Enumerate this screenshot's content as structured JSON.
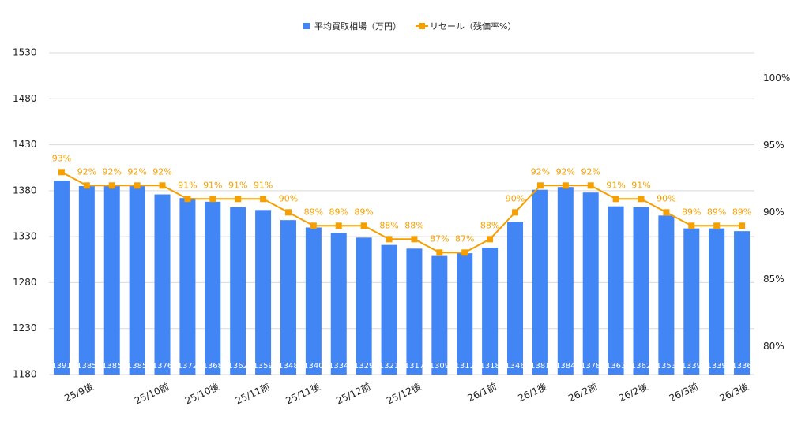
{
  "chart_data": {
    "type": "bar-line",
    "categories": [
      null,
      "25/9後",
      null,
      null,
      "25/10前",
      null,
      "25/10後",
      null,
      "25/11前",
      null,
      "25/11後",
      null,
      "25/12前",
      null,
      "25/12後",
      null,
      null,
      "26/1前",
      null,
      "26/1後",
      null,
      "26/2前",
      null,
      "26/2後",
      null,
      "26/3前",
      null,
      "26/3後"
    ],
    "series": [
      {
        "name": "平均買取相場（万円）",
        "color": "#4285f4",
        "type": "bar",
        "values": [
          1391,
          1385,
          1385,
          1385,
          1376,
          1372,
          1368,
          1362,
          1359,
          1348,
          1340,
          1334,
          1329,
          1321,
          1317,
          1309,
          1312,
          1318,
          1346,
          1381,
          1384,
          1378,
          1363,
          1362,
          1353,
          1339,
          1339,
          1336
        ]
      },
      {
        "name": "リセール（残価率%）",
        "color": "#f5a000",
        "type": "line",
        "axis": "y2",
        "values": [
          93,
          92,
          92,
          92,
          92,
          91,
          91,
          91,
          91,
          90,
          89,
          89,
          89,
          88,
          88,
          87,
          87,
          88,
          90,
          92,
          92,
          92,
          91,
          91,
          90,
          89,
          89,
          89
        ],
        "value_labels": [
          "93%",
          "92%",
          "92%",
          "92%",
          "92%",
          "91%",
          "91%",
          "91%",
          "91%",
          "90%",
          "89%",
          "89%",
          "89%",
          "88%",
          "88%",
          "87%",
          "87%",
          "88%",
          "90%",
          "92%",
          "92%",
          "92%",
          "91%",
          "91%",
          "90%",
          "89%",
          "89%",
          "89%"
        ]
      }
    ],
    "ylim": [
      1180,
      1530
    ],
    "yticks": [
      1180,
      1230,
      1280,
      1330,
      1380,
      1430,
      1480,
      1530
    ],
    "y2lim": [
      77.9,
      101.9
    ],
    "y2ticks": [
      {
        "value": 80,
        "label": "80%"
      },
      {
        "value": 85,
        "label": "85%"
      },
      {
        "value": 90,
        "label": "90%"
      },
      {
        "value": 95,
        "label": "95%"
      },
      {
        "value": 100,
        "label": "100%"
      }
    ],
    "grid": true,
    "legend": "top"
  }
}
